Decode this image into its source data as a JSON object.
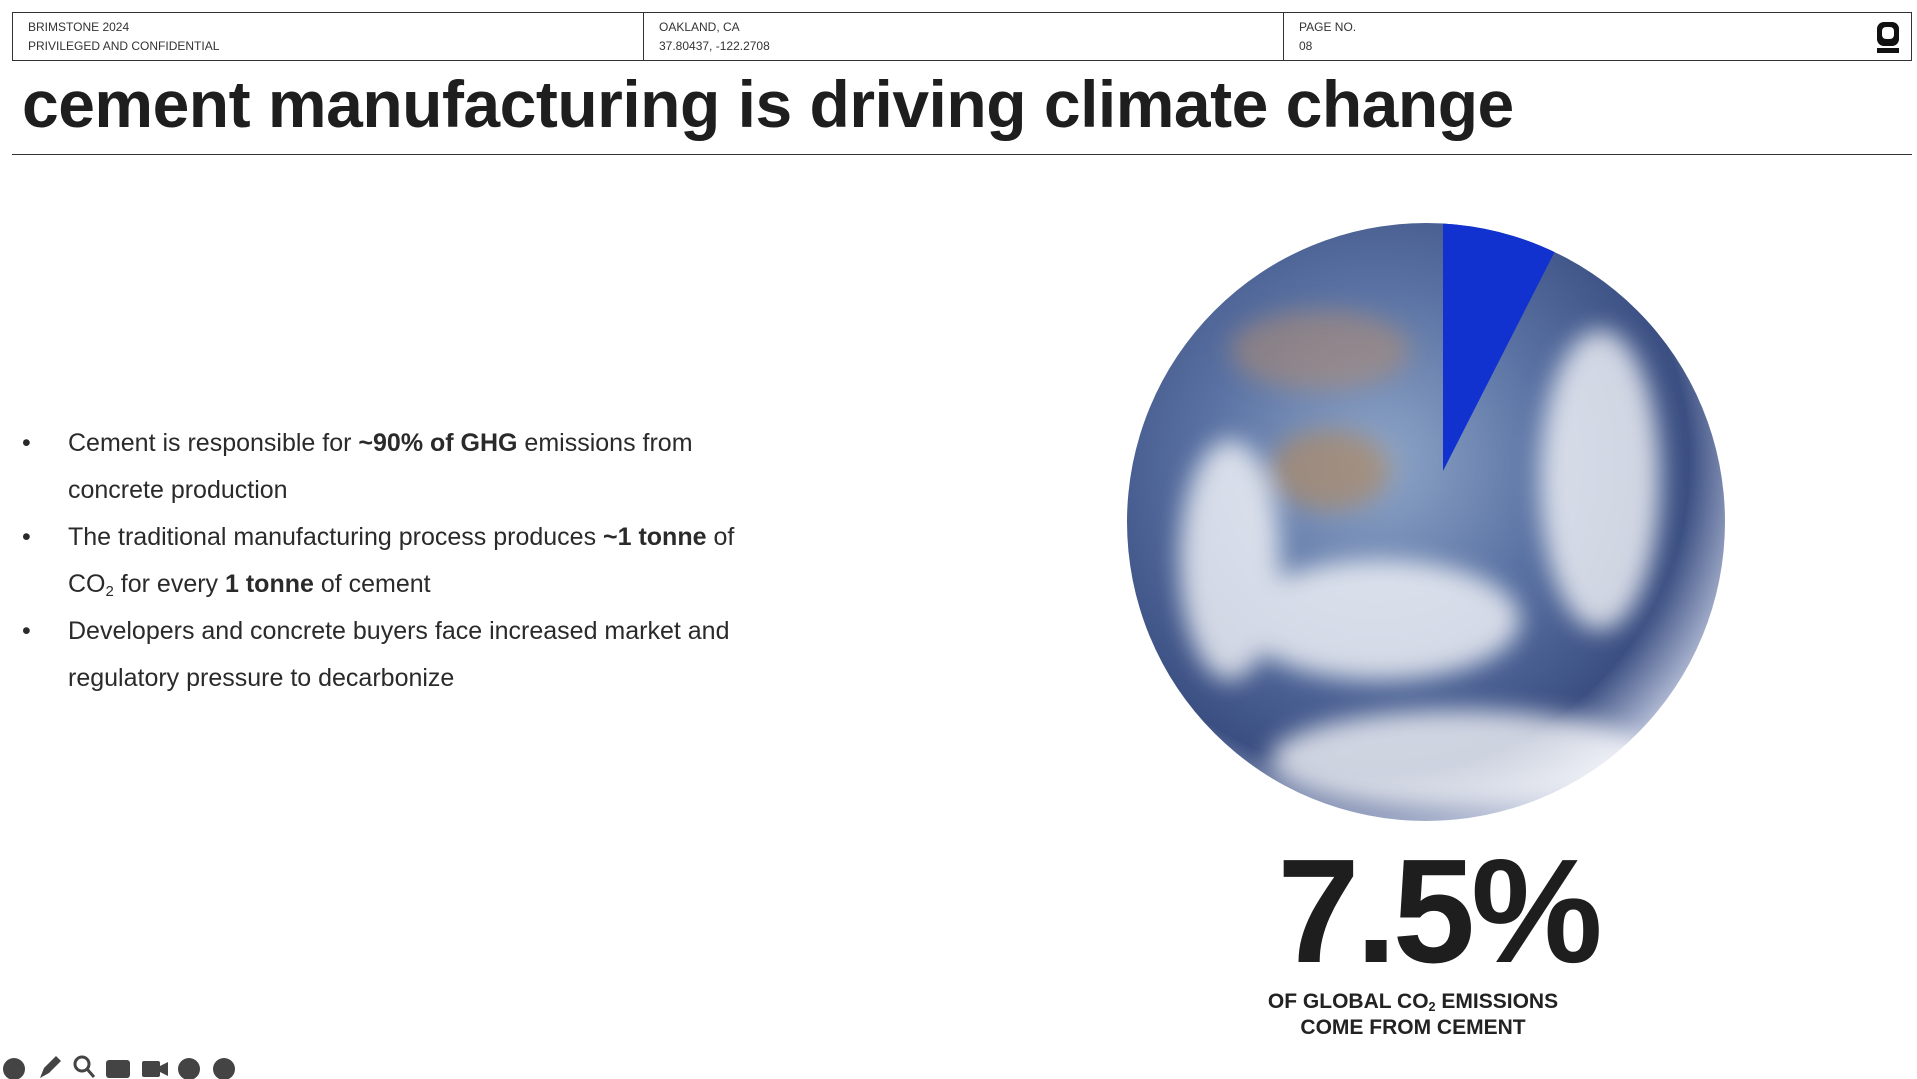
{
  "header": {
    "left": [
      "BRIMSTONE 2024",
      "PRIVILEGED AND CONFIDENTIAL"
    ],
    "middle": [
      "OAKLAND, CA",
      "37.80437, -122.2708"
    ],
    "right": [
      "PAGE NO.",
      "08"
    ]
  },
  "title": "cement manufacturing is driving climate change",
  "bullets": [
    [
      {
        "text": "Cement is responsible for "
      },
      {
        "text": "~90% of GHG",
        "bold": true
      },
      {
        "text": " emissions from concrete production"
      }
    ],
    [
      {
        "text": "The traditional manufacturing process produces "
      },
      {
        "text": "~1 tonne",
        "bold": true
      },
      {
        "text": " of CO"
      },
      {
        "text": "2",
        "sub": true
      },
      {
        "text": " for every "
      },
      {
        "text": "1 tonne",
        "bold": true
      },
      {
        "text": " of cement"
      }
    ],
    [
      {
        "text": "Developers and concrete buyers face increased market and regulatory pressure to decarbonize"
      }
    ]
  ],
  "stat": {
    "value": 7.5,
    "value_label": "7.5%",
    "color": "#1232d0",
    "caption": [
      [
        {
          "text": "OF GLOBAL CO"
        },
        {
          "text": "2",
          "sub": true
        },
        {
          "text": " EMISSIONS"
        }
      ],
      [
        {
          "text": "COME FROM CEMENT"
        }
      ]
    ]
  }
}
